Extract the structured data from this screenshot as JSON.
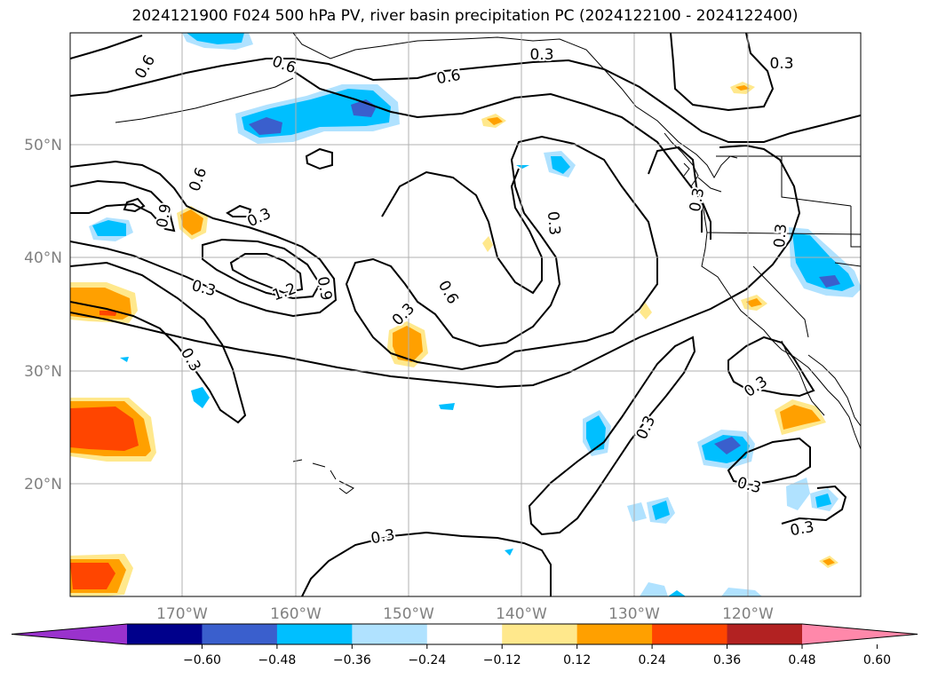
{
  "title": "2024121900 F024 500 hPa PV, river basin precipitation PC (2024122100 - 2024122400)",
  "lat_labels": [
    "50°N",
    "40°N",
    "30°N",
    "20°N"
  ],
  "lon_labels": [
    "170°W",
    "160°W",
    "150°W",
    "140°W",
    "130°W",
    "120°W"
  ],
  "contour_labels": [
    "0.6",
    "0.6",
    "0.6",
    "0.3",
    "0.3",
    "0.6",
    "0.9",
    "0.3",
    "0.3",
    "1.2",
    "0.9",
    "0.3",
    "0.6",
    "0.3",
    "0.3",
    "0.3",
    "0.3",
    "0.3",
    "0.3",
    "0.3",
    "0.3"
  ],
  "colorbar": {
    "ticks": [
      "−0.60",
      "−0.48",
      "−0.36",
      "−0.24",
      "−0.12",
      "0.12",
      "0.24",
      "0.36",
      "0.48",
      "0.60"
    ],
    "colors": [
      "#9a32cd",
      "#00008b",
      "#3a5fcd",
      "#00bfff",
      "#b0e2ff",
      "#ffffff",
      "#ffe88c",
      "#ffa000",
      "#ff4500",
      "#b22222",
      "#ff88aa"
    ]
  },
  "colors": {
    "neg_strong": "#3a5fcd",
    "neg_mid": "#00bfff",
    "neg_weak": "#b0e2ff",
    "pos_weak": "#ffe88c",
    "pos_mid": "#ffa000",
    "pos_strong": "#ff4500",
    "grid": "#b0b0b0",
    "axis_label": "#808080"
  }
}
